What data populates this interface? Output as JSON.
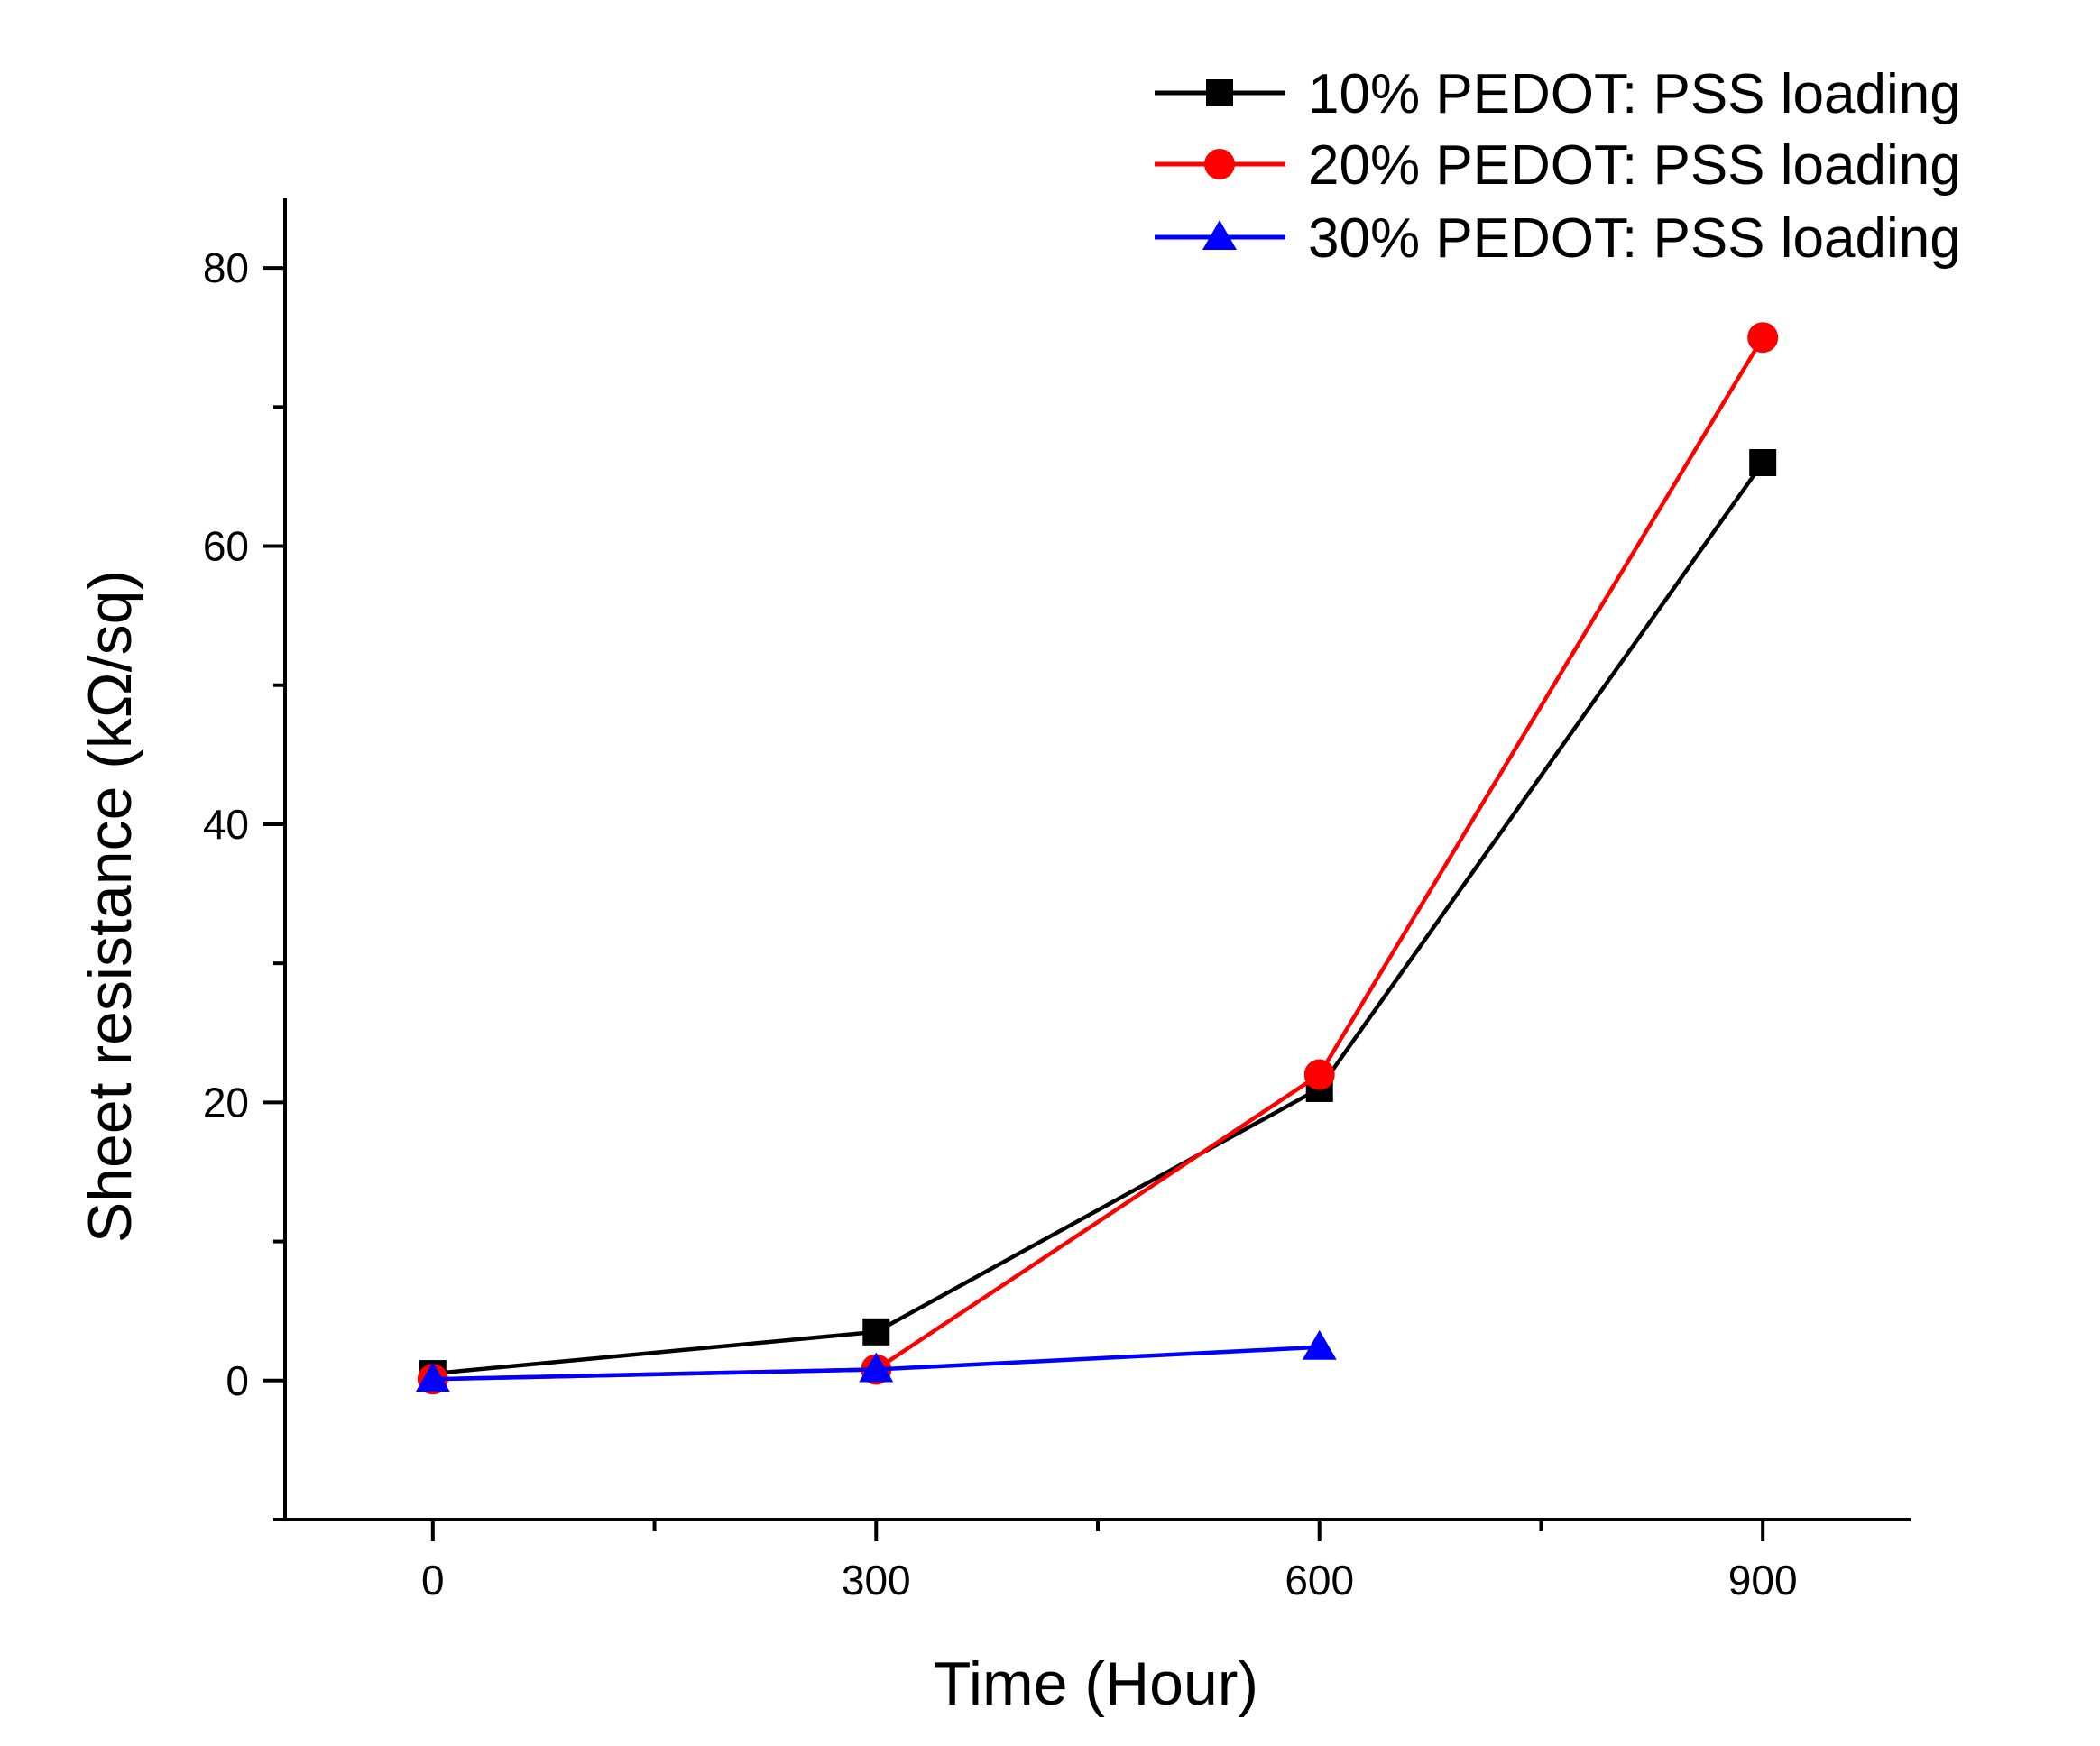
{
  "chart_data": {
    "type": "line",
    "title": "",
    "xlabel": "Time (Hour)",
    "ylabel": "Sheet resistance (kΩ/sq)",
    "xlim": [
      -100,
      1000
    ],
    "ylim": [
      -10,
      85
    ],
    "xticks": [
      0,
      300,
      600,
      900
    ],
    "xtick_labels": [
      "0",
      "300",
      "600",
      "900"
    ],
    "xminor_ticks": [
      150,
      450,
      750
    ],
    "yticks": [
      0,
      20,
      40,
      60,
      80
    ],
    "ytick_labels": [
      "0",
      "20",
      "40",
      "60",
      "80"
    ],
    "yminor_ticks": [
      -10,
      10,
      30,
      50,
      70
    ],
    "grid": false,
    "legend_position": "top-right",
    "series": [
      {
        "name": "10% PEDOT: PSS loading",
        "color": "#000000",
        "marker": "square",
        "x": [
          0,
          300,
          600,
          900
        ],
        "y": [
          0.5,
          3.5,
          21,
          66
        ]
      },
      {
        "name": "20% PEDOT: PSS loading",
        "color": "#ff0000",
        "marker": "circle",
        "x": [
          0,
          300,
          600,
          900
        ],
        "y": [
          0.1,
          0.8,
          22,
          75
        ]
      },
      {
        "name": "30% PEDOT: PSS loading",
        "color": "#0000ff",
        "marker": "triangle",
        "x": [
          0,
          300,
          600
        ],
        "y": [
          0.1,
          0.8,
          2.4
        ]
      }
    ]
  }
}
